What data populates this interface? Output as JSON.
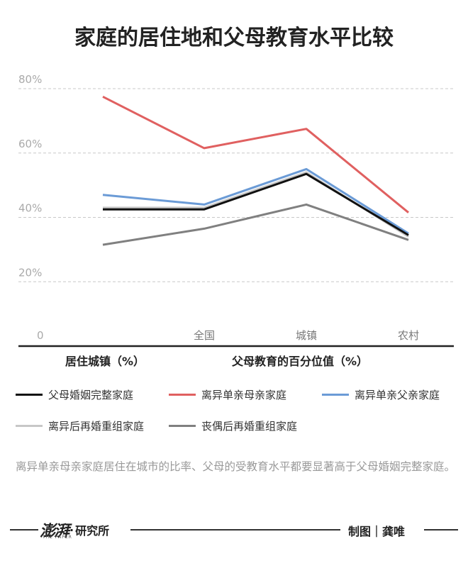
{
  "chart_data": {
    "type": "line",
    "title": "家庭的居住地和父母教育水平比较",
    "y_ticks": [
      "80%",
      "60%",
      "40%",
      "20%"
    ],
    "y_tick_values": [
      80,
      60,
      40,
      20
    ],
    "zero_label": "0",
    "categories": [
      "居住城镇",
      "全国",
      "城镇",
      "农村"
    ],
    "x_tick_labels": [
      "",
      "全国",
      "城镇",
      "农村"
    ],
    "ylim": [
      0,
      80
    ],
    "grid": true,
    "legend_placement": "bottom",
    "series": [
      {
        "name": "父母婚姻完整家庭",
        "color": "#111111",
        "values": [
          42.5,
          42.5,
          53.5,
          34.5
        ]
      },
      {
        "name": "离异单亲母亲家庭",
        "color": "#e06060",
        "values": [
          77.5,
          61.5,
          67.5,
          41.5
        ]
      },
      {
        "name": "离异单亲父亲家庭",
        "color": "#6b9bd6",
        "values": [
          47,
          44,
          55,
          35
        ]
      },
      {
        "name": "离异后再婚重组家庭",
        "color": "#c7c7c7",
        "values": [
          43,
          43,
          54,
          34
        ]
      },
      {
        "name": "丧偶后再婚重组家庭",
        "color": "#808080",
        "values": [
          31.5,
          36.5,
          44,
          33
        ]
      }
    ]
  },
  "axis_captions": {
    "left": "居住城镇（%）",
    "right": "父母教育的百分位值（%）"
  },
  "note": "离异单亲母亲家庭居住在城市的比率、父母的受教育水平都要显著高于父母婚姻完整家庭。",
  "footer": {
    "brand_logo": "澎湃",
    "brand_dot": "·",
    "brand_name": "研究所",
    "brand_sub": "THE PAPER",
    "credit": "制图｜龚唯"
  }
}
